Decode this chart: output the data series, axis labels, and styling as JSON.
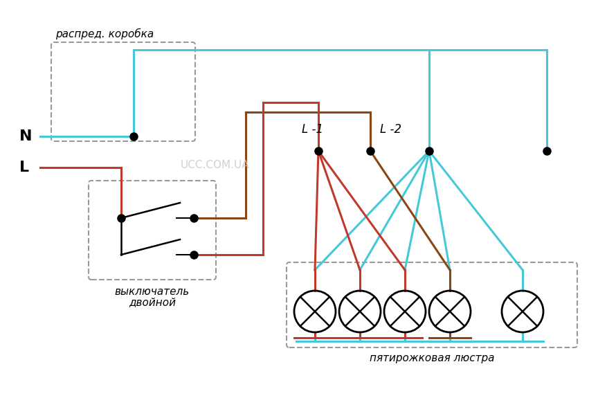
{
  "bg_color": "#ffffff",
  "cyan": "#45c8d8",
  "red": "#c0392b",
  "brown": "#8B4513",
  "black": "#000000",
  "label_N": "N",
  "label_L": "L",
  "label_L1": "L -1",
  "label_L2": "L -2",
  "label_box": "распред. коробка",
  "label_switch1": "выключатель",
  "label_switch2": "двойной",
  "label_chandelier": "пятирожковая люстра",
  "watermark": "UCC.COM.UA",
  "lw": 2.2,
  "lw_thin": 1.5
}
